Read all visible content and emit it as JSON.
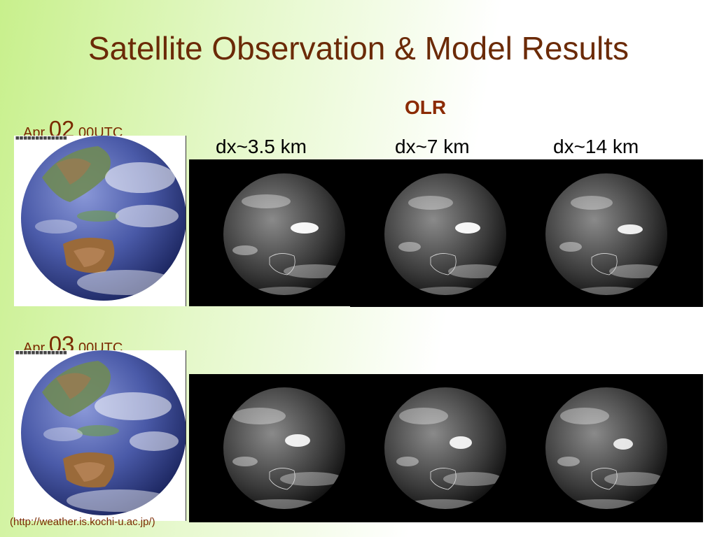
{
  "slide": {
    "title": "Satellite Observation & Model Results",
    "olr_label": "OLR",
    "resolutions": [
      "dx~3.5 km",
      "dx~7 km",
      "dx~14 km"
    ],
    "rows": [
      {
        "month": "Apr",
        "day": "02",
        "time": "00UTC"
      },
      {
        "month": "Apr",
        "day": "03",
        "time": "00UTC"
      }
    ],
    "credit": "(http://weather.is.kochi-u.ac.jp/)"
  }
}
